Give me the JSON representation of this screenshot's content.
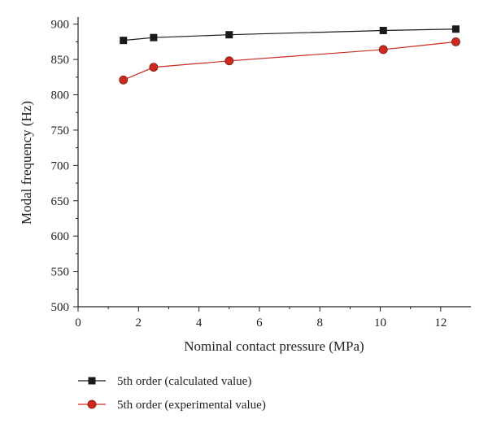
{
  "chart_data": {
    "type": "line",
    "xlabel": "Nominal contact pressure (MPa)",
    "ylabel": "Modal frequency (Hz)",
    "xlim": [
      0,
      13
    ],
    "ylim": [
      500,
      910
    ],
    "xticks": [
      0,
      2,
      4,
      6,
      8,
      10,
      12
    ],
    "yticks": [
      500,
      550,
      600,
      650,
      700,
      750,
      800,
      850,
      900
    ],
    "grid": false,
    "legend_position": "bottom",
    "series": [
      {
        "name": "5th order (calculated value)",
        "marker": "square",
        "color": "#1a1a1a",
        "x": [
          1.5,
          2.5,
          5.0,
          10.1,
          12.5
        ],
        "y": [
          877,
          881,
          885,
          891,
          893
        ]
      },
      {
        "name": "5th order (experimental value)",
        "marker": "circle",
        "color": "#cc2a1f",
        "x": [
          1.5,
          2.5,
          5.0,
          10.1,
          12.5
        ],
        "y": [
          821,
          839,
          848,
          864,
          875
        ]
      }
    ]
  }
}
